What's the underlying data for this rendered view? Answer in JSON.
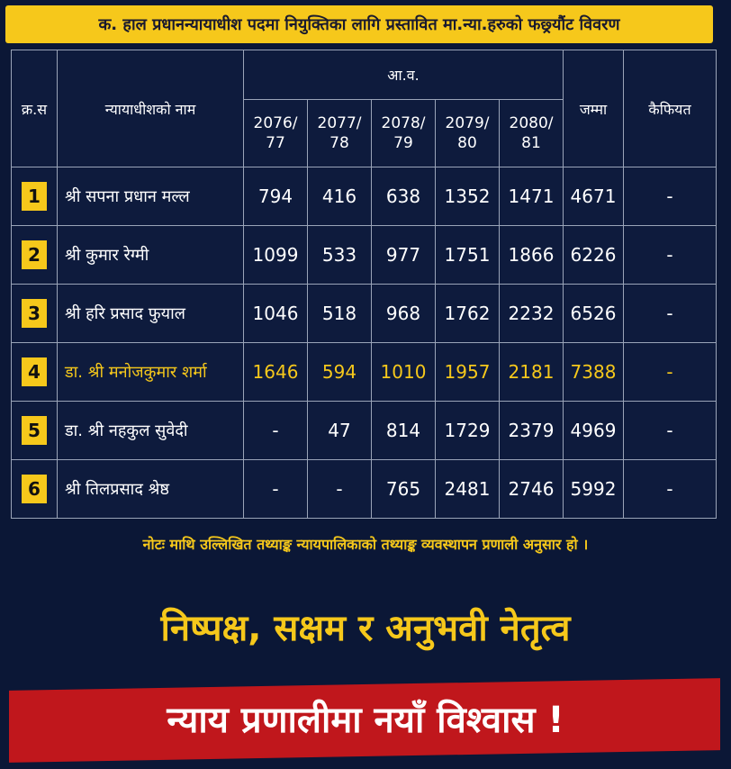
{
  "header": {
    "title": "क. हाल प्रधानन्यायाधीश पदमा नियुक्तिका लागि प्रस्तावित मा.न्या.हरुको फछ्र्यौंट विवरण"
  },
  "table": {
    "columns": {
      "serial": "क्र.स",
      "name": "न्यायाधीशको नाम",
      "fiscal_year": "आ.व.",
      "years": [
        "2076/ 77",
        "2077/ 78",
        "2078/ 79",
        "2079/ 80",
        "2080/ 81"
      ],
      "total": "जम्मा",
      "remarks": "कैफियत"
    },
    "rows": [
      [
        1,
        "श्री सपना प्रधान मल्ल",
        794,
        416,
        638,
        1352,
        1471,
        4671,
        "-"
      ],
      [
        2,
        "श्री कुमार रेग्मी",
        1099,
        533,
        977,
        1751,
        1866,
        6226,
        "-"
      ],
      [
        3,
        "श्री हरि प्रसाद फुयाल",
        1046,
        518,
        968,
        1762,
        2232,
        6526,
        "-"
      ],
      [
        4,
        "डा. श्री मनोजकुमार शर्मा",
        1646,
        594,
        1010,
        1957,
        2181,
        7388,
        "-"
      ],
      [
        5,
        "डा. श्री नहकुल सुवेदी",
        "-",
        47,
        814,
        1729,
        2379,
        4969,
        "-"
      ],
      [
        6,
        "श्री तिलप्रसाद श्रेष्ठ",
        "-",
        "-",
        765,
        2481,
        2746,
        5992,
        "-"
      ]
    ]
  },
  "note": "नोटः माथि उल्लिखित तथ्याङ्क न्यायपालिकाको तथ्याङ्क व्यवस्थापन प्रणाली अनुसार हो ।",
  "slogan": {
    "line1": "निष्पक्ष, सक्षम र अनुभवी नेतृत्व",
    "line2": "न्याय प्रणालीमा नयाँ विश्वास !"
  }
}
